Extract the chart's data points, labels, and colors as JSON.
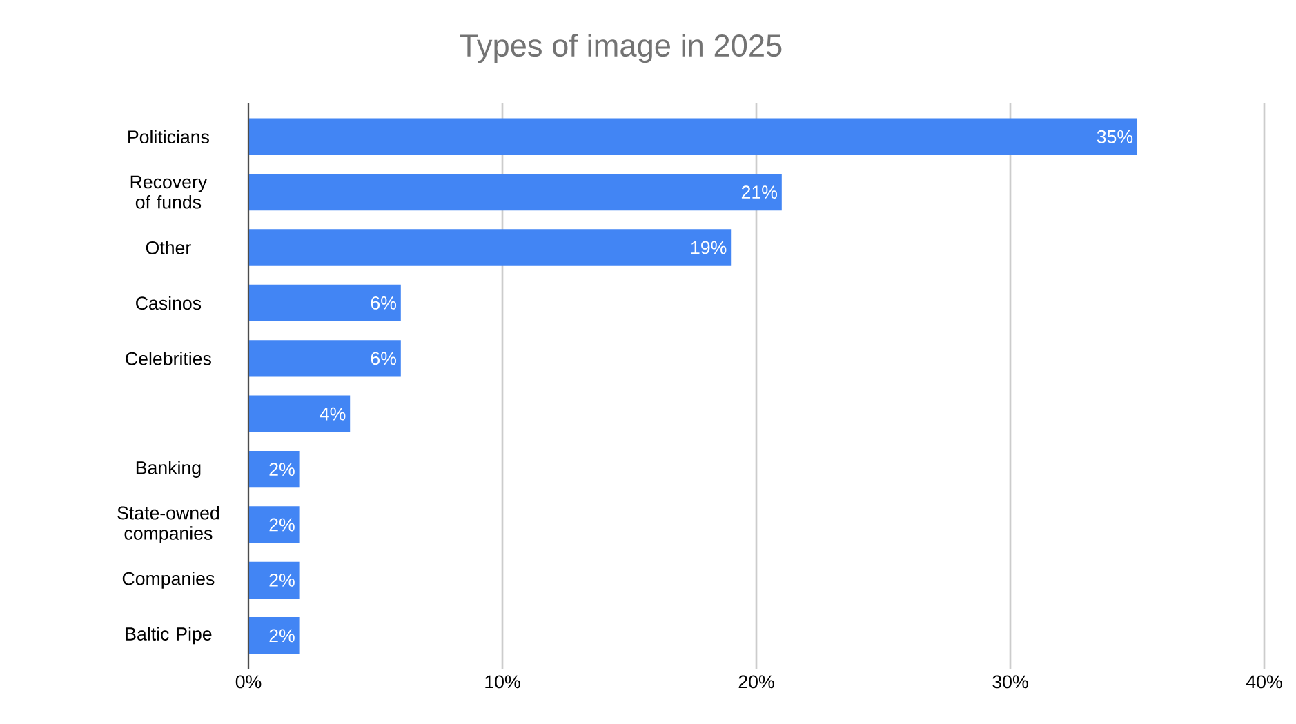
{
  "chart_data": {
    "type": "bar",
    "orientation": "horizontal",
    "title": "Types of image in 2025",
    "categories": [
      "Politicians",
      "Recovery of funds",
      "Other",
      "Casinos",
      "Celebrities",
      null,
      "Banking",
      "State-owned companies",
      "Companies",
      "Baltic Pipe"
    ],
    "values": [
      35,
      21,
      19,
      6,
      6,
      4,
      2,
      2,
      2,
      2
    ],
    "value_labels": [
      "35%",
      "21%",
      "19%",
      "6%",
      "6%",
      "4%",
      "2%",
      "2%",
      "2%",
      "2%"
    ],
    "color": "#4285f4",
    "xlim": [
      0,
      40
    ],
    "xticks": [
      {
        "value": 0,
        "label": "0%"
      },
      {
        "value": 10,
        "label": "10%"
      },
      {
        "value": 20,
        "label": "20%"
      },
      {
        "value": 30,
        "label": "30%"
      },
      {
        "value": 40,
        "label": "40%"
      }
    ],
    "grid": "x"
  }
}
